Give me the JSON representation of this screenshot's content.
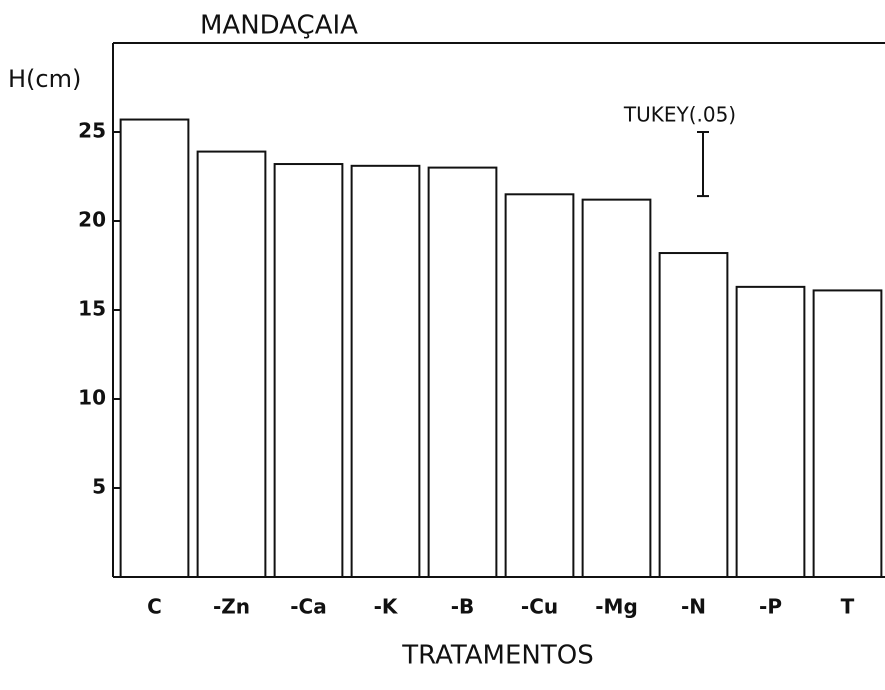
{
  "chart_data": {
    "type": "bar",
    "title": "MANDAÇAIA",
    "ylabel": "H(cm)",
    "xlabel": "TRATAMENTOS",
    "categories": [
      "C",
      "-Zn",
      "-Ca",
      "-K",
      "-B",
      "-Cu",
      "-Mg",
      "-N",
      "-P",
      "T"
    ],
    "values": [
      25.7,
      23.9,
      23.2,
      23.1,
      23.0,
      21.5,
      21.2,
      18.2,
      16.3,
      16.1
    ],
    "color": "#ffffff",
    "ylim": [
      0,
      30
    ],
    "yticks": [
      5,
      10,
      15,
      20,
      25
    ],
    "tukey": {
      "label": "TUKEY(.05)",
      "value": 3.6,
      "top": 25
    }
  }
}
